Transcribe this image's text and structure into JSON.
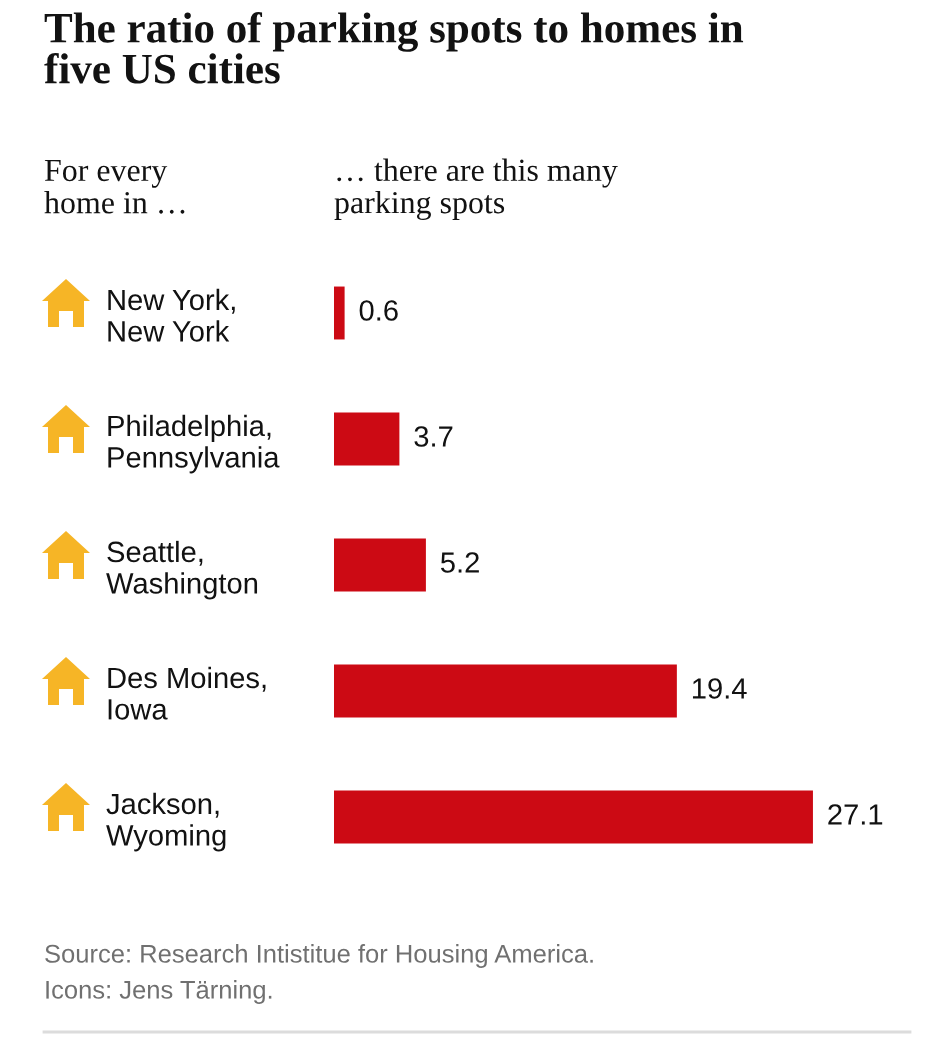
{
  "chart_data": {
    "type": "bar",
    "orientation": "horizontal",
    "title": "The ratio of parking spots to homes in\nfive US cities",
    "ylabel": "For every\nhome in …",
    "xlabel": "… there are this many\nparking spots",
    "categories": [
      "New York,\nNew York",
      "Philadelphia,\nPennsylvania",
      "Seattle,\nWashington",
      "Des Moines,\nIowa",
      "Jackson,\nWyoming"
    ],
    "values": [
      0.6,
      3.7,
      5.2,
      19.4,
      27.1
    ],
    "color": "#cc0a14",
    "data_labels": true,
    "tick_labels": "y",
    "annotations": [
      "Source: Research Intistitue for Housing America.",
      "Icons: Jens Tärning."
    ]
  }
}
